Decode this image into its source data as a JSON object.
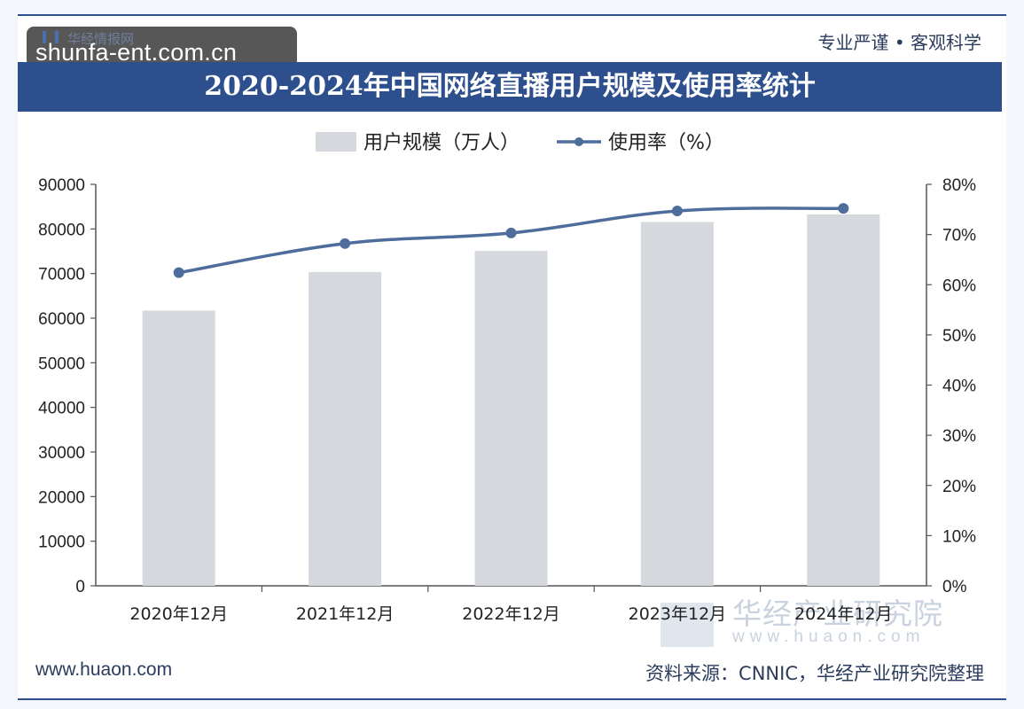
{
  "header": {
    "watermark_site": "shunfa-ent.com.cn",
    "logo_text": "华经情报网",
    "tagline": "专业严谨 • 客观科学",
    "title": "2020-2024年中国网络直播用户规模及使用率统计"
  },
  "footer": {
    "website": "www.huaon.com",
    "source": "资料来源：CNNIC，华经产业研究院整理"
  },
  "watermark": {
    "name": "华经产业研究院",
    "url": "www.huaon.com"
  },
  "chart_data": {
    "type": "bar",
    "title": "2020-2024年中国网络直播用户规模及使用率统计",
    "categories": [
      "2020年12月",
      "2021年12月",
      "2022年12月",
      "2023年12月",
      "2024年12月"
    ],
    "series": [
      {
        "name": "用户规模（万人）",
        "type": "bar",
        "axis": "left",
        "values": [
          61685,
          70337,
          75065,
          81566,
          83279
        ],
        "color": "#d5d8dd"
      },
      {
        "name": "使用率（%）",
        "type": "line",
        "axis": "right",
        "values": [
          62.4,
          68.2,
          70.3,
          74.7,
          75.2
        ],
        "color": "#4e6d9c"
      }
    ],
    "y_left": {
      "ylim": [
        0,
        90000
      ],
      "ticks": [
        "0",
        "10000",
        "20000",
        "30000",
        "40000",
        "50000",
        "60000",
        "70000",
        "80000",
        "90000"
      ]
    },
    "y_right": {
      "ylim": [
        0,
        80
      ],
      "ticks": [
        "0%",
        "10%",
        "20%",
        "30%",
        "40%",
        "50%",
        "60%",
        "70%",
        "80%"
      ]
    },
    "grid": false,
    "legend_position": "top-center"
  }
}
